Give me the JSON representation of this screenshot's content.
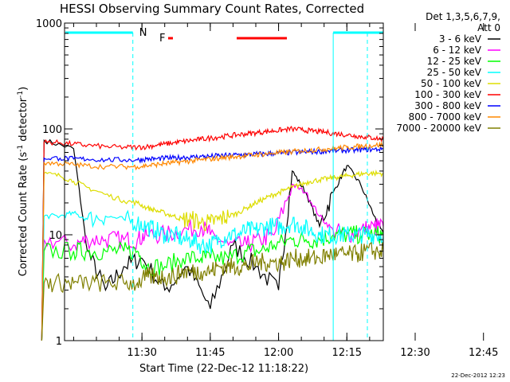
{
  "chart_data": {
    "type": "line",
    "title": "HESSI Observing Summary Count Rates, Corrected",
    "xlabel": "Start Time (22-Dec-12 11:18:22)",
    "ylabel_main": "Corrected Count Rate (s",
    "ylabel_sup1": "-1",
    "ylabel_mid": " detector",
    "ylabel_sup2": "-1",
    "ylabel_end": ")",
    "yscale": "log",
    "ylim": [
      1,
      1000
    ],
    "xlim_minutes": [
      -17,
      53
    ],
    "x_ticks": [
      {
        "label": "11:30",
        "t": 0
      },
      {
        "label": "11:45",
        "t": 15
      },
      {
        "label": "12:00",
        "t": 30
      },
      {
        "label": "12:15",
        "t": 45
      },
      {
        "label": "12:30",
        "t": 60
      },
      {
        "label": "12:45",
        "t": 75
      }
    ],
    "y_ticks": [
      {
        "label": "1",
        "value": 1
      },
      {
        "label": "10",
        "value": 10
      },
      {
        "label": "100",
        "value": 100
      },
      {
        "label": "1000",
        "value": 1000
      }
    ],
    "legend": {
      "header1": "Det 1,3,5,6,7,9,",
      "header2": "Att 0",
      "placement": "right"
    },
    "annotations": {
      "night_label": "N",
      "flare_label": "F",
      "date_stamp": "22-Dec-2012 12:23"
    },
    "series": [
      {
        "name": "3 - 6 keV",
        "color": "#000000",
        "values": [
          [
            -22,
            1
          ],
          [
            -21.5,
            78
          ],
          [
            -15,
            65
          ],
          [
            -12,
            7
          ],
          [
            -8,
            3
          ],
          [
            -4,
            5
          ],
          [
            0,
            6
          ],
          [
            5,
            3
          ],
          [
            10,
            5
          ],
          [
            15,
            2
          ],
          [
            20,
            8
          ],
          [
            25,
            5
          ],
          [
            30,
            3
          ],
          [
            33,
            40
          ],
          [
            36,
            25
          ],
          [
            39,
            12
          ],
          [
            42,
            25
          ],
          [
            45,
            45
          ],
          [
            48,
            30
          ],
          [
            51,
            15
          ],
          [
            53,
            10
          ]
        ]
      },
      {
        "name": "6 - 12 keV",
        "color": "#ff00ff",
        "values": [
          [
            -22,
            1
          ],
          [
            -21.5,
            9
          ],
          [
            -15,
            8
          ],
          [
            -12,
            9
          ],
          [
            -8,
            9
          ],
          [
            -4,
            9
          ],
          [
            -1,
            9
          ],
          [
            1,
            10
          ],
          [
            5,
            10
          ],
          [
            9,
            11
          ],
          [
            13,
            12
          ],
          [
            15,
            10
          ],
          [
            19,
            8
          ],
          [
            23,
            8
          ],
          [
            26,
            9
          ],
          [
            29,
            10
          ],
          [
            33,
            30
          ],
          [
            36,
            25
          ],
          [
            39,
            15
          ],
          [
            42,
            11
          ],
          [
            45,
            10
          ],
          [
            48,
            11
          ],
          [
            51,
            12
          ],
          [
            53,
            12
          ]
        ]
      },
      {
        "name": "12 - 25 keV",
        "color": "#00ff00",
        "values": [
          [
            -22,
            1
          ],
          [
            -21.5,
            7
          ],
          [
            -15,
            7
          ],
          [
            -12,
            7
          ],
          [
            -8,
            7
          ],
          [
            -4,
            7
          ],
          [
            -1,
            7
          ],
          [
            1,
            5
          ],
          [
            5,
            5
          ],
          [
            9,
            6
          ],
          [
            13,
            6
          ],
          [
            15,
            6
          ],
          [
            19,
            6
          ],
          [
            23,
            7
          ],
          [
            26,
            7
          ],
          [
            29,
            8
          ],
          [
            33,
            9
          ],
          [
            36,
            9
          ],
          [
            39,
            9
          ],
          [
            42,
            10
          ],
          [
            45,
            10
          ],
          [
            48,
            10
          ],
          [
            51,
            10
          ],
          [
            53,
            10
          ]
        ]
      },
      {
        "name": "25 - 50 keV",
        "color": "#00ffff",
        "values": [
          [
            -22,
            1
          ],
          [
            -21.5,
            15
          ],
          [
            -18,
            15
          ],
          [
            -15,
            16
          ],
          [
            -12,
            14
          ],
          [
            -8,
            15
          ],
          [
            -4,
            14
          ],
          [
            -1,
            13
          ],
          [
            1,
            12
          ],
          [
            3,
            11
          ],
          [
            5,
            10
          ],
          [
            7,
            10
          ],
          [
            9,
            9
          ],
          [
            11,
            9
          ],
          [
            13,
            8
          ],
          [
            15,
            8
          ],
          [
            17,
            9
          ],
          [
            19,
            10
          ],
          [
            21,
            10
          ],
          [
            23,
            11
          ],
          [
            25,
            11
          ],
          [
            27,
            12
          ],
          [
            29,
            12
          ],
          [
            31,
            12
          ],
          [
            33,
            13
          ],
          [
            35,
            12
          ],
          [
            37,
            11
          ],
          [
            39,
            10
          ],
          [
            41,
            10
          ],
          [
            43,
            10
          ],
          [
            45,
            10
          ],
          [
            47,
            10
          ],
          [
            49,
            10
          ],
          [
            51,
            10
          ],
          [
            53,
            10
          ]
        ]
      },
      {
        "name": "50 - 100 keV",
        "color": "#dddd00",
        "values": [
          [
            -22,
            1
          ],
          [
            -21.5,
            38
          ],
          [
            -18,
            36
          ],
          [
            -15,
            32
          ],
          [
            -12,
            28
          ],
          [
            -8,
            24
          ],
          [
            -4,
            21
          ],
          [
            -1,
            20
          ],
          [
            1,
            18
          ],
          [
            3,
            17
          ],
          [
            5,
            16
          ],
          [
            7,
            15
          ],
          [
            9,
            14
          ],
          [
            11,
            14
          ],
          [
            13,
            13
          ],
          [
            15,
            13
          ],
          [
            17,
            14
          ],
          [
            19,
            15
          ],
          [
            21,
            16
          ],
          [
            23,
            18
          ],
          [
            25,
            20
          ],
          [
            27,
            22
          ],
          [
            29,
            24
          ],
          [
            31,
            26
          ],
          [
            33,
            28
          ],
          [
            35,
            30
          ],
          [
            37,
            32
          ],
          [
            39,
            33
          ],
          [
            41,
            34
          ],
          [
            43,
            35
          ],
          [
            45,
            36
          ],
          [
            47,
            37
          ],
          [
            49,
            38
          ],
          [
            51,
            38
          ],
          [
            53,
            38
          ]
        ]
      },
      {
        "name": "100 - 300 keV",
        "color": "#ff0000",
        "values": [
          [
            -22,
            1
          ],
          [
            -21.5,
            75
          ],
          [
            -18,
            74
          ],
          [
            -15,
            72
          ],
          [
            -12,
            70
          ],
          [
            -8,
            68
          ],
          [
            -4,
            67
          ],
          [
            -1,
            67
          ],
          [
            1,
            68
          ],
          [
            3,
            70
          ],
          [
            5,
            72
          ],
          [
            7,
            74
          ],
          [
            9,
            76
          ],
          [
            11,
            78
          ],
          [
            13,
            80
          ],
          [
            15,
            82
          ],
          [
            17,
            84
          ],
          [
            19,
            86
          ],
          [
            21,
            88
          ],
          [
            23,
            90
          ],
          [
            25,
            92
          ],
          [
            27,
            94
          ],
          [
            29,
            96
          ],
          [
            31,
            98
          ],
          [
            33,
            100
          ],
          [
            35,
            98
          ],
          [
            37,
            96
          ],
          [
            39,
            94
          ],
          [
            41,
            92
          ],
          [
            43,
            90
          ],
          [
            45,
            88
          ],
          [
            47,
            86
          ],
          [
            49,
            84
          ],
          [
            51,
            82
          ],
          [
            53,
            80
          ]
        ]
      },
      {
        "name": "300 - 800 keV",
        "color": "#0000ff",
        "values": [
          [
            -22,
            1
          ],
          [
            -21.5,
            53
          ],
          [
            -18,
            53
          ],
          [
            -15,
            52
          ],
          [
            -12,
            52
          ],
          [
            -8,
            51
          ],
          [
            -4,
            51
          ],
          [
            -1,
            51
          ],
          [
            1,
            52
          ],
          [
            3,
            52
          ],
          [
            5,
            53
          ],
          [
            7,
            53
          ],
          [
            9,
            54
          ],
          [
            11,
            54
          ],
          [
            13,
            55
          ],
          [
            15,
            55
          ],
          [
            17,
            56
          ],
          [
            19,
            56
          ],
          [
            21,
            57
          ],
          [
            23,
            57
          ],
          [
            25,
            58
          ],
          [
            27,
            58
          ],
          [
            29,
            59
          ],
          [
            31,
            59
          ],
          [
            33,
            60
          ],
          [
            35,
            60
          ],
          [
            37,
            61
          ],
          [
            39,
            61
          ],
          [
            41,
            62
          ],
          [
            43,
            62
          ],
          [
            45,
            63
          ],
          [
            47,
            63
          ],
          [
            49,
            64
          ],
          [
            51,
            64
          ],
          [
            53,
            65
          ]
        ]
      },
      {
        "name": "800 - 7000 keV",
        "color": "#ff8800",
        "values": [
          [
            -22,
            1
          ],
          [
            -21.5,
            48
          ],
          [
            -18,
            47
          ],
          [
            -15,
            46
          ],
          [
            -12,
            45
          ],
          [
            -8,
            44
          ],
          [
            -4,
            44
          ],
          [
            -1,
            44
          ],
          [
            1,
            45
          ],
          [
            3,
            46
          ],
          [
            5,
            47
          ],
          [
            7,
            48
          ],
          [
            9,
            49
          ],
          [
            11,
            50
          ],
          [
            13,
            51
          ],
          [
            15,
            52
          ],
          [
            17,
            53
          ],
          [
            19,
            54
          ],
          [
            21,
            55
          ],
          [
            23,
            56
          ],
          [
            25,
            57
          ],
          [
            27,
            58
          ],
          [
            29,
            59
          ],
          [
            31,
            60
          ],
          [
            33,
            61
          ],
          [
            35,
            62
          ],
          [
            37,
            63
          ],
          [
            39,
            64
          ],
          [
            41,
            65
          ],
          [
            43,
            66
          ],
          [
            45,
            67
          ],
          [
            47,
            68
          ],
          [
            49,
            69
          ],
          [
            51,
            70
          ],
          [
            53,
            71
          ]
        ]
      },
      {
        "name": "7000 - 20000 keV",
        "color": "#808000",
        "values": [
          [
            -22,
            1
          ],
          [
            -21.5,
            3.5
          ],
          [
            -18,
            3.5
          ],
          [
            -15,
            3.5
          ],
          [
            -12,
            3.5
          ],
          [
            -8,
            3.5
          ],
          [
            -4,
            3.5
          ],
          [
            -1,
            3.5
          ],
          [
            1,
            4
          ],
          [
            3,
            4
          ],
          [
            5,
            4
          ],
          [
            7,
            4
          ],
          [
            9,
            4.5
          ],
          [
            11,
            4.5
          ],
          [
            13,
            4.5
          ],
          [
            15,
            4.5
          ],
          [
            17,
            5
          ],
          [
            19,
            5
          ],
          [
            21,
            5
          ],
          [
            23,
            5
          ],
          [
            25,
            5.5
          ],
          [
            27,
            5.5
          ],
          [
            29,
            5.5
          ],
          [
            31,
            5.5
          ],
          [
            33,
            6
          ],
          [
            35,
            6
          ],
          [
            37,
            6
          ],
          [
            39,
            6
          ],
          [
            41,
            6.5
          ],
          [
            43,
            6.5
          ],
          [
            45,
            6.5
          ],
          [
            47,
            6.5
          ],
          [
            49,
            7
          ],
          [
            51,
            7
          ],
          [
            53,
            7
          ]
        ]
      }
    ]
  }
}
